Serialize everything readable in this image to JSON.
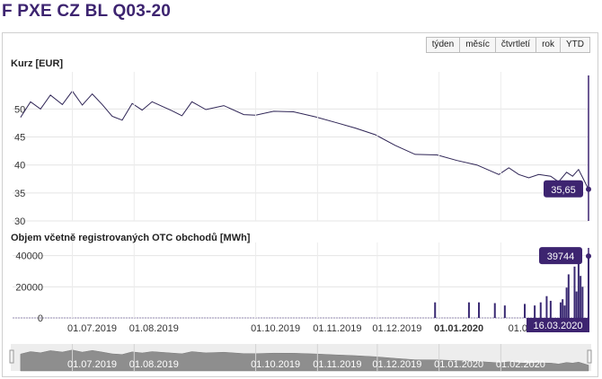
{
  "page": {
    "title": "F PXE CZ BL Q03-20"
  },
  "toolbar": {
    "range_buttons": [
      "týden",
      "měsíc",
      "čtvrtletí",
      "rok",
      "YTD"
    ]
  },
  "colors": {
    "accent": "#3d2470",
    "line": "#2e2455",
    "navigator": "#8e8e8e"
  },
  "chart_data": [
    {
      "type": "line",
      "title": "Kurz [EUR]",
      "ylim": [
        30,
        56
      ],
      "yticks": [
        30,
        35,
        40,
        45,
        50
      ],
      "last_value_label": "35,65",
      "x": [
        "2019-06-05",
        "2019-06-10",
        "2019-06-15",
        "2019-06-20",
        "2019-06-26",
        "2019-07-01",
        "2019-07-06",
        "2019-07-11",
        "2019-07-16",
        "2019-07-21",
        "2019-07-26",
        "2019-07-31",
        "2019-08-05",
        "2019-08-10",
        "2019-08-15",
        "2019-08-20",
        "2019-08-25",
        "2019-08-30",
        "2019-09-06",
        "2019-09-15",
        "2019-09-25",
        "2019-10-01",
        "2019-10-10",
        "2019-10-20",
        "2019-10-31",
        "2019-11-10",
        "2019-11-20",
        "2019-11-30",
        "2019-12-10",
        "2019-12-20",
        "2019-12-31",
        "2020-01-10",
        "2020-01-20",
        "2020-01-31",
        "2020-02-05",
        "2020-02-10",
        "2020-02-15",
        "2020-02-20",
        "2020-02-26",
        "2020-03-01",
        "2020-03-05",
        "2020-03-08",
        "2020-03-11",
        "2020-03-13",
        "2020-03-16"
      ],
      "y": [
        48.5,
        51.3,
        50.0,
        52.5,
        50.8,
        53.2,
        50.7,
        52.7,
        50.8,
        48.7,
        48.0,
        51.0,
        49.8,
        51.3,
        50.5,
        49.7,
        48.8,
        51.3,
        49.9,
        50.6,
        49.0,
        48.9,
        49.6,
        49.5,
        48.6,
        47.6,
        46.6,
        45.4,
        43.5,
        41.9,
        41.8,
        40.8,
        40.0,
        38.3,
        39.5,
        38.3,
        37.7,
        38.3,
        38.0,
        37.0,
        38.7,
        38.0,
        39.2,
        37.8,
        35.65
      ]
    },
    {
      "type": "bar",
      "title": "Objem včetně registrovaných OTC obchodů [MWh]",
      "ylim": [
        0,
        45000
      ],
      "yticks": [
        0,
        20000,
        40000
      ],
      "last_value_label": "39744",
      "x": [
        "2019-12-30",
        "2020-01-16",
        "2020-01-21",
        "2020-01-29",
        "2020-02-03",
        "2020-02-13",
        "2020-02-18",
        "2020-02-21",
        "2020-02-24",
        "2020-02-26",
        "2020-03-02",
        "2020-03-03",
        "2020-03-04",
        "2020-03-05",
        "2020-03-06",
        "2020-03-09",
        "2020-03-10",
        "2020-03-11",
        "2020-03-12",
        "2020-03-13",
        "2020-03-16"
      ],
      "values": [
        10000,
        10000,
        10000,
        9500,
        8000,
        9000,
        8000,
        10000,
        14000,
        11000,
        10000,
        12000,
        8000,
        19500,
        28000,
        33000,
        17000,
        36000,
        27000,
        20000,
        39744
      ]
    }
  ],
  "x_axis": {
    "ticks": [
      {
        "date": "2019-07-01",
        "label": "01.07.2019",
        "bold": false
      },
      {
        "date": "2019-08-01",
        "label": "01.08.2019",
        "bold": false
      },
      {
        "date": "2019-10-01",
        "label": "01.10.2019",
        "bold": false
      },
      {
        "date": "2019-11-01",
        "label": "01.11.2019",
        "bold": false
      },
      {
        "date": "2019-12-01",
        "label": "01.12.2019",
        "bold": false
      },
      {
        "date": "2020-01-01",
        "label": "01.01.2020",
        "bold": true
      },
      {
        "date": "2020-02-01",
        "label": "01.02",
        "bold": false
      }
    ],
    "cursor_date": "16.03.2020"
  },
  "navigator": {
    "ticks": [
      "01.07.2019",
      "01.08.2019",
      "01.10.2019",
      "01.11.2019",
      "01.12.2019",
      "01.01.2020",
      "01.02.2020"
    ]
  }
}
